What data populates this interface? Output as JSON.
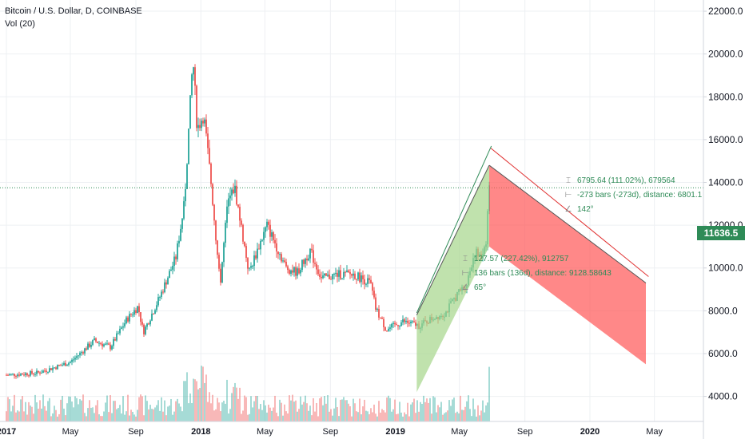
{
  "chart_data": {
    "type": "candlestick",
    "title": "Bitcoin / U.S. Dollar, D, COINBASE",
    "subtitle": "Vol (20)",
    "x_tick_labels": [
      "2017",
      "May",
      "Sep",
      "2018",
      "May",
      "Sep",
      "2019",
      "May",
      "Sep",
      "2020",
      "May"
    ],
    "y_tick_labels": [
      "22000.0",
      "20000.0",
      "18000.0",
      "16000.0",
      "14000.0",
      "12000.0",
      "10000.0",
      "8000.0",
      "6000.0",
      "4000.0"
    ],
    "y_ticks": [
      22000,
      20000,
      18000,
      16000,
      14000,
      12000,
      10000,
      8000,
      6000,
      4000
    ],
    "ylim": [
      3500,
      22300
    ],
    "x_dates": [
      "2017-01-01",
      "2017-05-01",
      "2017-09-01",
      "2018-01-01",
      "2018-05-01",
      "2018-09-01",
      "2019-01-01",
      "2019-05-01",
      "2019-09-01",
      "2020-01-01",
      "2020-05-01"
    ],
    "price_path": [
      {
        "date": "2017-01-01",
        "price": 5000
      },
      {
        "date": "2017-03-01",
        "price": 5100
      },
      {
        "date": "2017-05-01",
        "price": 5600
      },
      {
        "date": "2017-06-15",
        "price": 6600
      },
      {
        "date": "2017-07-15",
        "price": 6300
      },
      {
        "date": "2017-08-15",
        "price": 7600
      },
      {
        "date": "2017-09-05",
        "price": 8200
      },
      {
        "date": "2017-09-15",
        "price": 7000
      },
      {
        "date": "2017-10-15",
        "price": 8600
      },
      {
        "date": "2017-11-15",
        "price": 10500
      },
      {
        "date": "2017-12-01",
        "price": 13000
      },
      {
        "date": "2017-12-17",
        "price": 19800
      },
      {
        "date": "2017-12-25",
        "price": 16500
      },
      {
        "date": "2018-01-06",
        "price": 17200
      },
      {
        "date": "2018-01-20",
        "price": 14000
      },
      {
        "date": "2018-02-06",
        "price": 9200
      },
      {
        "date": "2018-02-20",
        "price": 13000
      },
      {
        "date": "2018-03-05",
        "price": 13800
      },
      {
        "date": "2018-04-01",
        "price": 9800
      },
      {
        "date": "2018-05-05",
        "price": 12000
      },
      {
        "date": "2018-06-10",
        "price": 10000
      },
      {
        "date": "2018-07-01",
        "price": 9800
      },
      {
        "date": "2018-07-25",
        "price": 10800
      },
      {
        "date": "2018-08-15",
        "price": 9500
      },
      {
        "date": "2018-09-15",
        "price": 9700
      },
      {
        "date": "2018-10-15",
        "price": 9700
      },
      {
        "date": "2018-11-15",
        "price": 9300
      },
      {
        "date": "2018-11-25",
        "price": 8100
      },
      {
        "date": "2018-12-15",
        "price": 7100
      },
      {
        "date": "2019-01-15",
        "price": 7500
      },
      {
        "date": "2019-02-15",
        "price": 7300
      },
      {
        "date": "2019-03-15",
        "price": 7700
      },
      {
        "date": "2019-04-05",
        "price": 7900
      },
      {
        "date": "2019-04-25",
        "price": 8700
      },
      {
        "date": "2019-05-15",
        "price": 9300
      },
      {
        "date": "2019-05-30",
        "price": 10800
      },
      {
        "date": "2019-06-10",
        "price": 10400
      },
      {
        "date": "2019-06-20",
        "price": 11300
      },
      {
        "date": "2019-06-26",
        "price": 13900
      }
    ],
    "volume_label": "Vol (20)",
    "current_price": "11636.5",
    "current_price_value": 11636.5,
    "reference_price_value": 13750,
    "up_channel": {
      "label_lines": [
        "127.57 (227.42%), 912757",
        "136 bars (136d), distance: 9128.58643",
        "65°"
      ],
      "fill": "#a5d68a",
      "line": "#2e8b57",
      "lower": [
        {
          "date": "2019-02-10",
          "price": 4200
        },
        {
          "date": "2019-06-26",
          "price": 11000
        }
      ],
      "upper": [
        {
          "date": "2019-02-10",
          "price": 7800
        },
        {
          "date": "2019-06-26",
          "price": 14800
        }
      ],
      "trend": [
        {
          "date": "2019-02-10",
          "price": 7900
        },
        {
          "date": "2019-06-30",
          "price": 15700
        }
      ]
    },
    "down_channel": {
      "label_lines": [
        "6795.64 (111.02%), 679564",
        "-273 bars (-273d), distance: 6801.1",
        "142°"
      ],
      "fill": "#ff5555",
      "line": "#e03030",
      "upper": [
        {
          "date": "2019-06-26",
          "price": 14800
        },
        {
          "date": "2020-04-15",
          "price": 9300
        }
      ],
      "lower": [
        {
          "date": "2019-06-26",
          "price": 11000
        },
        {
          "date": "2020-04-15",
          "price": 5500
        }
      ],
      "trend": [
        {
          "date": "2019-06-29",
          "price": 15600
        },
        {
          "date": "2020-04-20",
          "price": 9600
        }
      ]
    }
  },
  "colors": {
    "up": "#26a69a",
    "down": "#ef5350",
    "grid": "#eef0f3",
    "axis_text": "#131722",
    "axis_line": "#d1d4dc"
  }
}
